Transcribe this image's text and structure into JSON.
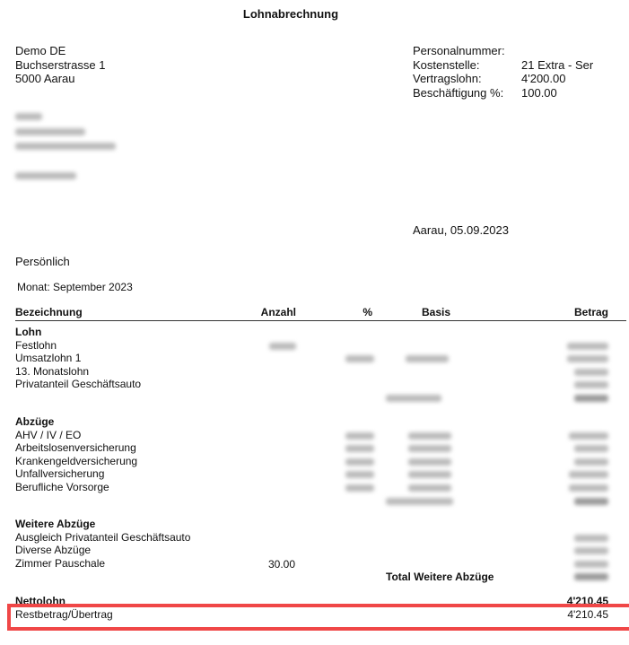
{
  "title": "Lohnabrechnung",
  "company": {
    "name": "Demo DE",
    "street": "Buchserstrasse 1",
    "city": "5000 Aarau"
  },
  "info": [
    {
      "label": "Personalnummer:",
      "value": ""
    },
    {
      "label": "Kostenstelle:",
      "value": "21 Extra - Ser"
    },
    {
      "label": "Vertragslohn:",
      "value": "4'200.00"
    },
    {
      "label": "Beschäftigung %:",
      "value": "100.00"
    }
  ],
  "place_date": "Aarau, 05.09.2023",
  "section": "Persönlich",
  "month": "Monat: September 2023",
  "columns": {
    "bezeichnung": "Bezeichnung",
    "anzahl": "Anzahl",
    "prozent": "%",
    "basis": "Basis",
    "betrag": "Betrag"
  },
  "groups": [
    {
      "title": "Lohn",
      "rows": [
        "Festlohn",
        "Umsatzlohn 1",
        "13. Monatslohn",
        "Privatanteil Geschäftsauto"
      ]
    },
    {
      "title": "Abzüge",
      "rows": [
        "AHV / IV / EO",
        "Arbeitslosenversicherung",
        "Krankengeldversicherung",
        "Unfallversicherung",
        "Berufliche Vorsorge"
      ]
    },
    {
      "title": "Weitere Abzüge",
      "rows": [
        "Ausgleich Privatanteil Geschäftsauto",
        "Diverse Abzüge",
        "Zimmer Pauschale"
      ],
      "zimmer_anzahl": "30.00",
      "total_label": "Total Weitere Abzüge"
    }
  ],
  "netto": {
    "label": "Nettolohn",
    "value": "4'210.45"
  },
  "rest": {
    "label": "Restbetrag/Übertrag",
    "value": "4'210.45"
  },
  "highlight_color": "#f04747"
}
